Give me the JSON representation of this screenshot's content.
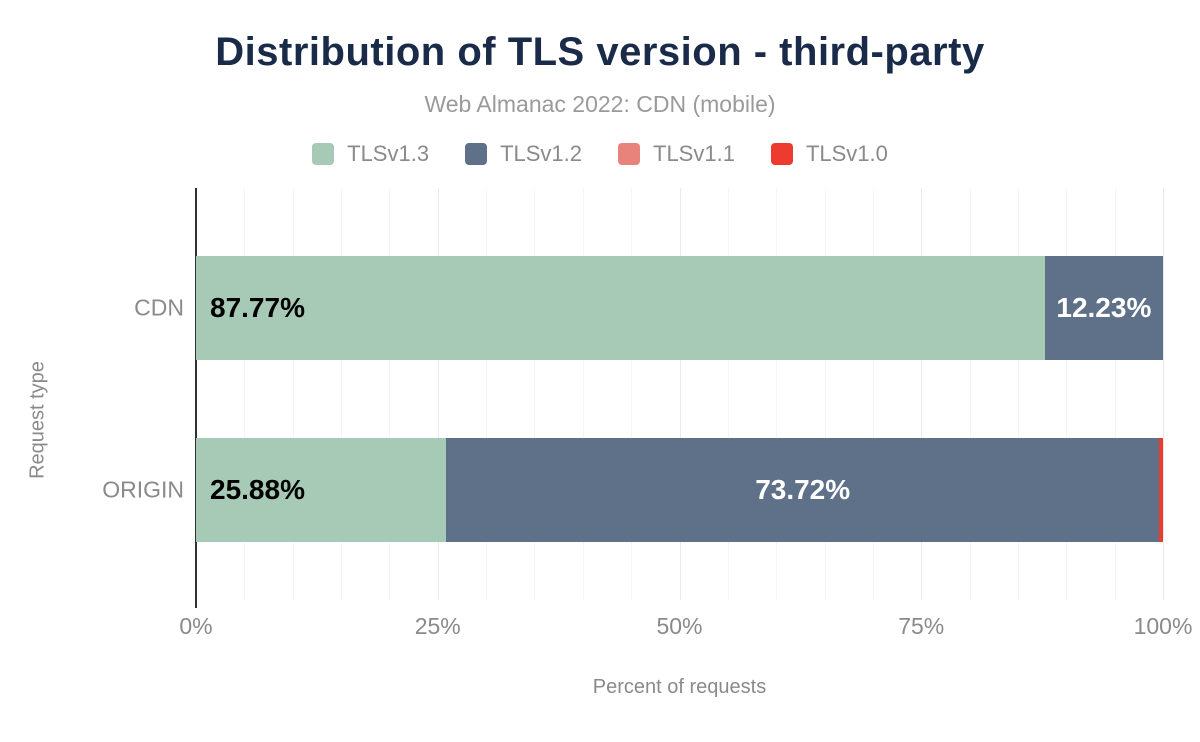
{
  "header": {
    "title": "Distribution of TLS version - third-party",
    "subtitle": "Web Almanac 2022: CDN (mobile)"
  },
  "legend": [
    {
      "label": "TLSv1.3",
      "color": "#a6cab6"
    },
    {
      "label": "TLSv1.2",
      "color": "#5e7189"
    },
    {
      "label": "TLSv1.1",
      "color": "#e8837b"
    },
    {
      "label": "TLSv1.0",
      "color": "#ed3c2f"
    }
  ],
  "chart_data": {
    "type": "bar",
    "orientation": "horizontal",
    "stacked": true,
    "categories": [
      "CDN",
      "ORIGIN"
    ],
    "series": [
      {
        "name": "TLSv1.3",
        "color": "#a6cab6",
        "values": [
          87.77,
          25.88
        ],
        "labels": [
          "87.77%",
          "25.88%"
        ],
        "label_color": "#000000"
      },
      {
        "name": "TLSv1.2",
        "color": "#5e7189",
        "values": [
          12.23,
          73.72
        ],
        "labels": [
          "12.23%",
          "73.72%"
        ],
        "label_color": "#ffffff"
      },
      {
        "name": "TLSv1.1",
        "color": "#e8837b",
        "values": [
          0,
          0
        ],
        "labels": [
          "",
          ""
        ],
        "label_color": "#ffffff"
      },
      {
        "name": "TLSv1.0",
        "color": "#ed3c2f",
        "values": [
          0,
          0.4
        ],
        "labels": [
          "",
          ""
        ],
        "label_color": "#ffffff"
      }
    ],
    "title": "Distribution of TLS version - third-party",
    "subtitle": "Web Almanac 2022: CDN (mobile)",
    "xlabel": "Percent of requests",
    "ylabel": "Request type",
    "xlim": [
      0,
      100
    ],
    "xticks": [
      "0%",
      "25%",
      "50%",
      "75%",
      "100%"
    ],
    "xtick_values": [
      0,
      25,
      50,
      75,
      100
    ],
    "grid": {
      "minor_step": 5,
      "major_step": 25,
      "visible": true
    },
    "legend_position": "top"
  },
  "colors": {
    "title_text": "#1a2b49",
    "muted_text": "#8a8a8a",
    "axis_line": "#2f2f2f",
    "grid_minor": "#f5f5f5",
    "grid_major": "#e9e9e9",
    "background": "#ffffff"
  }
}
